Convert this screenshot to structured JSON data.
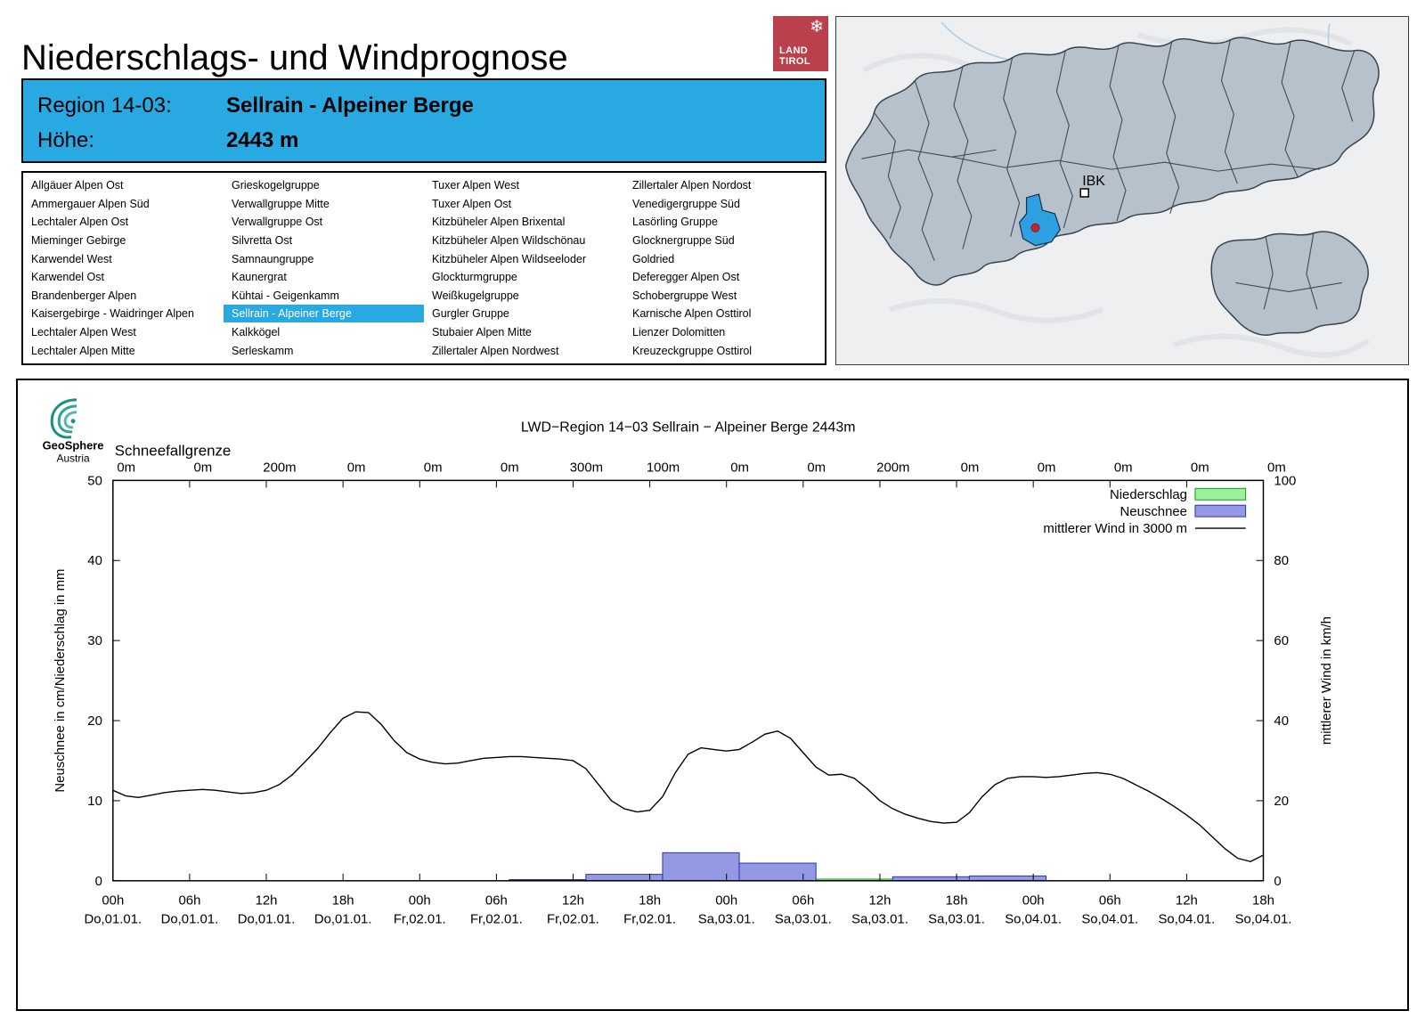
{
  "header": {
    "title": "Niederschlags- und Windprognose",
    "logo": {
      "line1": "LAND",
      "line2": "TIROL",
      "color": "#b8414b"
    }
  },
  "region_info": {
    "region_label": "Region 14-03:",
    "region_name": "Sellrain - Alpeiner Berge",
    "altitude_label": "Höhe:",
    "altitude_value": "2443 m",
    "accent_color": "#29a9e1"
  },
  "region_list": {
    "selected": "Sellrain - Alpeiner Berge",
    "columns": [
      [
        "Allgäuer Alpen Ost",
        "Ammergauer Alpen Süd",
        "Lechtaler Alpen Ost",
        "Mieminger Gebirge",
        "Karwendel West",
        "Karwendel Ost",
        "Brandenberger Alpen",
        "Kaisergebirge - Waidringer Alpen",
        "Lechtaler Alpen West",
        "Lechtaler Alpen Mitte"
      ],
      [
        "Grieskogelgruppe",
        "Verwallgruppe Mitte",
        "Verwallgruppe Ost",
        "Silvretta Ost",
        "Samnaungruppe",
        "Kaunergrat",
        "Kühtai - Geigenkamm",
        "Sellrain - Alpeiner Berge",
        "Kalkkögel",
        "Serleskamm"
      ],
      [
        "Tuxer Alpen West",
        "Tuxer Alpen Ost",
        "Kitzbüheler Alpen Brixental",
        "Kitzbüheler Alpen Wildschönau",
        "Kitzbüheler Alpen Wildseeloder",
        "Glockturmgruppe",
        "Weißkugelgruppe",
        "Gurgler Gruppe",
        "Stubaier Alpen Mitte",
        "Zillertaler Alpen Nordwest"
      ],
      [
        "Zillertaler Alpen Nordost",
        "Venedigergruppe Süd",
        "Lasörling Gruppe",
        "Glocknergruppe Süd",
        "Goldried",
        "Deferegger Alpen Ost",
        "Schobergruppe West",
        "Karnische Alpen Osttirol",
        "Lienzer Dolomitten",
        "Kreuzeckgruppe Osttirol"
      ]
    ]
  },
  "map": {
    "city_label": "IBK",
    "selected_region_color": "#2e9fe0",
    "region_fill": "#b6c1cb",
    "marker_color": "#c22828"
  },
  "chart_data": {
    "type": "line+bar",
    "title": "LWD−Region 14−03 Sellrain − Alpeiner Berge 2443m",
    "logo": {
      "name": "GeoSphere",
      "sub": "Austria"
    },
    "snowline_label": "Schneefallgrenze",
    "snowline_values": [
      "0m",
      "0m",
      "200m",
      "0m",
      "0m",
      "0m",
      "300m",
      "100m",
      "0m",
      "0m",
      "200m",
      "0m",
      "0m",
      "0m",
      "0m",
      "0m"
    ],
    "ylabel_left": "Neuschnee in cm/Niederschlag in mm",
    "ylabel_right": "mittlerer Wind in km/h",
    "ylim_left": [
      0,
      50
    ],
    "ylim_right": [
      0,
      100
    ],
    "yticks_left": [
      0,
      10,
      20,
      30,
      40,
      50
    ],
    "yticks_right": [
      0,
      20,
      40,
      60,
      80,
      100
    ],
    "x_hours_max": 90,
    "x_ticks": [
      {
        "time": "00h",
        "date": "Do,01.01."
      },
      {
        "time": "06h",
        "date": "Do,01.01."
      },
      {
        "time": "12h",
        "date": "Do,01.01."
      },
      {
        "time": "18h",
        "date": "Do,01.01."
      },
      {
        "time": "00h",
        "date": "Fr,02.01."
      },
      {
        "time": "06h",
        "date": "Fr,02.01."
      },
      {
        "time": "12h",
        "date": "Fr,02.01."
      },
      {
        "time": "18h",
        "date": "Fr,02.01."
      },
      {
        "time": "00h",
        "date": "Sa,03.01."
      },
      {
        "time": "06h",
        "date": "Sa,03.01."
      },
      {
        "time": "12h",
        "date": "Sa,03.01."
      },
      {
        "time": "18h",
        "date": "Sa,03.01."
      },
      {
        "time": "00h",
        "date": "So,04.01."
      },
      {
        "time": "06h",
        "date": "So,04.01."
      },
      {
        "time": "12h",
        "date": "So,04.01."
      },
      {
        "time": "18h",
        "date": "So,04.01."
      }
    ],
    "legend": [
      {
        "label": "Niederschlag",
        "type": "box",
        "fill": "#9cf09c",
        "stroke": "#0ca00c"
      },
      {
        "label": "Neuschnee",
        "type": "box",
        "fill": "#9399e3",
        "stroke": "#2f2fb3"
      },
      {
        "label": "mittlerer Wind in 3000 m",
        "type": "line",
        "stroke": "#000000"
      }
    ],
    "colors": {
      "niederschlag_fill": "#9cf09c",
      "niederschlag_stroke": "#0ca00c",
      "neuschnee_fill": "#9399e3",
      "neuschnee_stroke": "#2f2fb3",
      "wind": "#000000"
    },
    "neuschnee_blocks": [
      {
        "from": 31,
        "to": 37,
        "value": 0.15
      },
      {
        "from": 37,
        "to": 43,
        "value": 0.8
      },
      {
        "from": 43,
        "to": 49,
        "value": 3.5
      },
      {
        "from": 49,
        "to": 55,
        "value": 2.2
      },
      {
        "from": 61,
        "to": 67,
        "value": 0.5
      },
      {
        "from": 67,
        "to": 73,
        "value": 0.6
      }
    ],
    "niederschlag_blocks": [
      {
        "from": 55,
        "to": 61,
        "value": 0.2
      }
    ],
    "wind": {
      "unit": "km/h",
      "step_hours": 1,
      "values_kmh": [
        22.6,
        21.2,
        20.8,
        21.4,
        22,
        22.4,
        22.6,
        22.8,
        22.6,
        22.2,
        21.8,
        22,
        22.6,
        24,
        26.4,
        29.6,
        33,
        37,
        40.6,
        42.2,
        42,
        39,
        35,
        32,
        30.4,
        29.6,
        29.2,
        29.4,
        30,
        30.6,
        30.8,
        31,
        31,
        30.8,
        30.6,
        30.4,
        30,
        28,
        24,
        20,
        18,
        17.2,
        17.6,
        21,
        27,
        31.6,
        33.2,
        32.8,
        32.4,
        32.8,
        34.6,
        36.6,
        37.4,
        35.6,
        32,
        28.4,
        26.4,
        26.6,
        25.6,
        23,
        20,
        18,
        16.6,
        15.6,
        14.8,
        14.4,
        14.6,
        17,
        21,
        24,
        25.6,
        26,
        26,
        25.8,
        26,
        26.4,
        26.8,
        27,
        26.6,
        25.6,
        24,
        22.4,
        20.6,
        18.6,
        16.4,
        14,
        11,
        8,
        5.6,
        4.8,
        6.4
      ]
    }
  }
}
